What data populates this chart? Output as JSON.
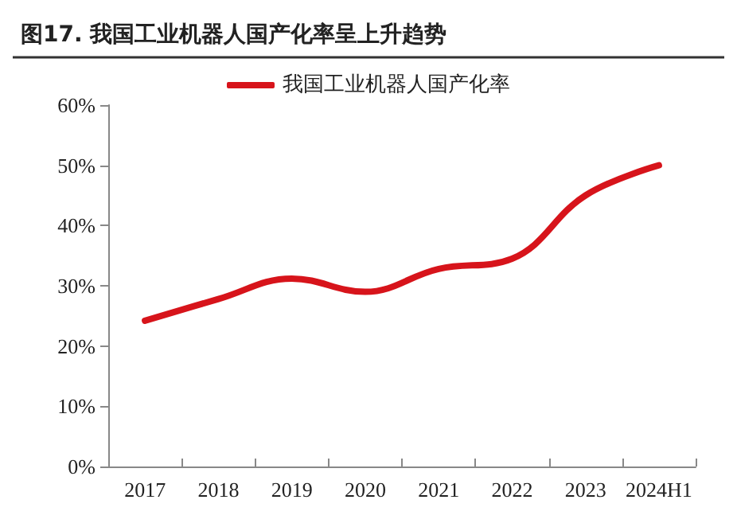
{
  "chart_data": {
    "type": "line",
    "title": "图17. 我国工业机器人国产化率呈上升趋势",
    "categories": [
      "2017",
      "2018",
      "2019",
      "2020",
      "2021",
      "2022",
      "2023",
      "2024H1"
    ],
    "series": [
      {
        "name": "我国工业机器人国产化率",
        "color": "#d7141b",
        "values": [
          24.2,
          27.8,
          31.2,
          29,
          32.8,
          34.5,
          45,
          50
        ]
      }
    ],
    "ylim": [
      0,
      60
    ],
    "yticks": [
      {
        "value": 0,
        "label": "0%"
      },
      {
        "value": 10,
        "label": "10%"
      },
      {
        "value": 20,
        "label": "20%"
      },
      {
        "value": 30,
        "label": "30%"
      },
      {
        "value": 40,
        "label": "40%"
      },
      {
        "value": 50,
        "label": "50%"
      },
      {
        "value": 60,
        "label": "60%"
      }
    ],
    "grid": false,
    "legend": "top",
    "marker": "none",
    "line_style": "solid"
  }
}
